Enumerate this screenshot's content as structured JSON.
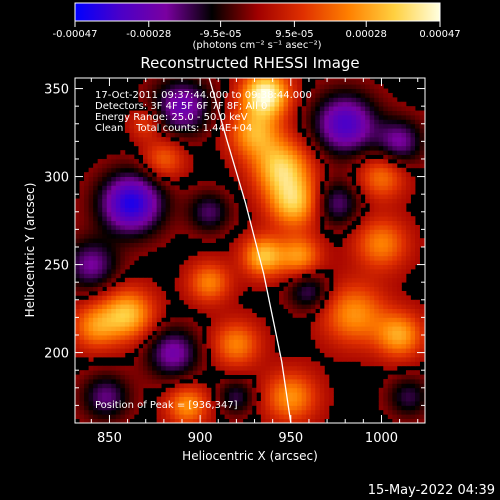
{
  "chart_data": {
    "type": "heatmap",
    "title": "Reconstructed RHESSI Image",
    "xlabel": "Heliocentric X (arcsec)",
    "ylabel": "Heliocentric Y (arcsec)",
    "xlim": [
      831,
      1024
    ],
    "ylim": [
      160,
      356
    ],
    "x_ticks": [
      850,
      900,
      950,
      1000
    ],
    "y_ticks": [
      200,
      250,
      300,
      350
    ],
    "colorbar": {
      "min": -0.00047,
      "max": 0.00047,
      "tick_values": [
        -0.00047,
        -0.00028,
        -9.5e-05,
        9.5e-05,
        0.00028,
        0.00047
      ],
      "tick_labels": [
        "-0.00047",
        "-0.00028",
        "-9.5e-05",
        "9.5e-05",
        "0.00028",
        "0.00047"
      ],
      "units_label": "(photons cm⁻² s⁻¹ asec⁻²)",
      "colormap": [
        "#0000ff",
        "#4b00c8",
        "#7a00a0",
        "#000000",
        "#a00000",
        "#e03000",
        "#ff8000",
        "#ffd040",
        "#ffffe0"
      ]
    },
    "annotations": [
      "17-Oct-2011 09:37:44.000 to 09:38:44.000",
      "Detectors: 3F 4F 5F 6F 7F 8F; All 0",
      "Energy Range: 25.0 - 50.0 keV",
      "Clean    Total counts: 1.44E+04"
    ],
    "peak_label": "Position of Peak = [936,347]",
    "peak": {
      "x": 936,
      "y": 347
    },
    "limb_curve": {
      "x": [
        905,
        915,
        925,
        935,
        945,
        950
      ],
      "y": [
        356,
        320,
        285,
        245,
        195,
        160
      ]
    },
    "blobs": [
      {
        "x": 936,
        "y": 347,
        "v": 1.0,
        "s": 9
      },
      {
        "x": 930,
        "y": 325,
        "v": 0.6,
        "s": 10
      },
      {
        "x": 945,
        "y": 305,
        "v": 0.75,
        "s": 11
      },
      {
        "x": 952,
        "y": 285,
        "v": 0.7,
        "s": 10
      },
      {
        "x": 935,
        "y": 255,
        "v": 0.7,
        "s": 8
      },
      {
        "x": 955,
        "y": 255,
        "v": 0.55,
        "s": 8
      },
      {
        "x": 860,
        "y": 222,
        "v": 0.7,
        "s": 10
      },
      {
        "x": 842,
        "y": 215,
        "v": 0.5,
        "s": 9
      },
      {
        "x": 905,
        "y": 240,
        "v": 0.5,
        "s": 8
      },
      {
        "x": 920,
        "y": 205,
        "v": 0.5,
        "s": 9
      },
      {
        "x": 985,
        "y": 222,
        "v": 0.55,
        "s": 12
      },
      {
        "x": 1010,
        "y": 210,
        "v": 0.6,
        "s": 9
      },
      {
        "x": 1000,
        "y": 262,
        "v": 0.5,
        "s": 10
      },
      {
        "x": 1000,
        "y": 300,
        "v": 0.45,
        "s": 9
      },
      {
        "x": 880,
        "y": 310,
        "v": 0.4,
        "s": 8
      },
      {
        "x": 893,
        "y": 170,
        "v": 0.55,
        "s": 8
      },
      {
        "x": 950,
        "y": 175,
        "v": 0.55,
        "s": 10
      },
      {
        "x": 870,
        "y": 330,
        "v": 0.3,
        "s": 6
      },
      {
        "x": 862,
        "y": 285,
        "v": -0.9,
        "s": 12
      },
      {
        "x": 840,
        "y": 250,
        "v": -0.5,
        "s": 10
      },
      {
        "x": 890,
        "y": 340,
        "v": -0.6,
        "s": 11
      },
      {
        "x": 980,
        "y": 330,
        "v": -0.75,
        "s": 12
      },
      {
        "x": 1010,
        "y": 320,
        "v": -0.5,
        "s": 9
      },
      {
        "x": 975,
        "y": 285,
        "v": -0.45,
        "s": 9
      },
      {
        "x": 885,
        "y": 200,
        "v": -0.55,
        "s": 10
      },
      {
        "x": 960,
        "y": 235,
        "v": -0.4,
        "s": 8
      },
      {
        "x": 905,
        "y": 280,
        "v": -0.4,
        "s": 8
      },
      {
        "x": 1015,
        "y": 175,
        "v": -0.35,
        "s": 8
      },
      {
        "x": 848,
        "y": 175,
        "v": -0.45,
        "s": 9
      },
      {
        "x": 920,
        "y": 175,
        "v": -0.35,
        "s": 7
      }
    ]
  },
  "footer": {
    "timestamp": "15-May-2022 04:39"
  }
}
